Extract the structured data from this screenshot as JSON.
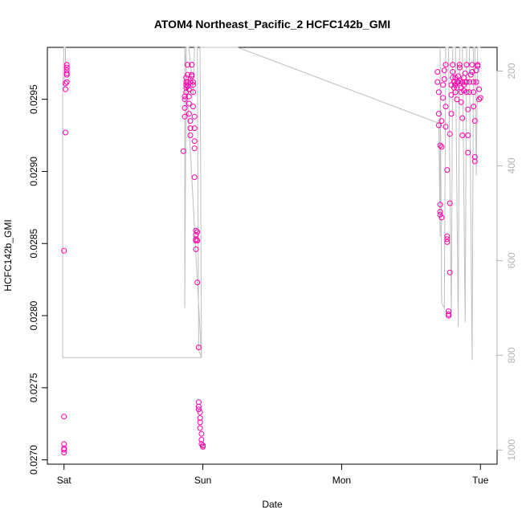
{
  "chart_data": {
    "type": "scatter",
    "title": "ATOM4 Northeast_Pacific_2 HCFC142b_GMI",
    "xlabel": "Date",
    "ylabel": "HCFC142b_GMI",
    "x_axis": {
      "ticks": [
        {
          "label": "Sat",
          "day": 0
        },
        {
          "label": "Sun",
          "day": 1
        },
        {
          "label": "Mon",
          "day": 2
        },
        {
          "label": "Tue",
          "day": 3
        }
      ],
      "range_days": [
        -0.12,
        3.12
      ]
    },
    "y_left": {
      "range": [
        0.02697,
        0.02986
      ],
      "ticks": [
        {
          "label": "0.0270",
          "value": 0.027
        },
        {
          "label": "0.0275",
          "value": 0.0275
        },
        {
          "label": "0.0280",
          "value": 0.028
        },
        {
          "label": "0.0285",
          "value": 0.0285
        },
        {
          "label": "0.0290",
          "value": 0.029
        },
        {
          "label": "0.0295",
          "value": 0.0295
        }
      ]
    },
    "y_right": {
      "quantity": "pressure",
      "range": [
        1030,
        150
      ],
      "color": "#b3b3b3",
      "ticks": [
        {
          "label": "200",
          "value": 200
        },
        {
          "label": "400",
          "value": 400
        },
        {
          "label": "600",
          "value": 600
        },
        {
          "label": "800",
          "value": 800
        },
        {
          "label": "1000",
          "value": 1000
        }
      ]
    },
    "series_style": {
      "marker_color": "#ff00aa",
      "line_color": "#bfbfbf"
    },
    "points": [
      {
        "x": 0.0,
        "y": 0.02707
      },
      {
        "x": 0.0,
        "y": 0.02705
      },
      {
        "x": 0.0,
        "y": 0.02711
      },
      {
        "x": 0.0,
        "y": 0.02708
      },
      {
        "x": 0.0,
        "y": 0.0273
      },
      {
        "x": 0.0,
        "y": 0.02845
      },
      {
        "x": 0.01,
        "y": 0.02927
      },
      {
        "x": 0.01,
        "y": 0.02957
      },
      {
        "x": 0.01,
        "y": 0.02961
      },
      {
        "x": 0.02,
        "y": 0.02962
      },
      {
        "x": 0.02,
        "y": 0.02967
      },
      {
        "x": 0.02,
        "y": 0.02968
      },
      {
        "x": 0.02,
        "y": 0.02972
      },
      {
        "x": 0.02,
        "y": 0.02974
      },
      {
        "x": 0.02,
        "y": 0.0297
      },
      {
        "x": 0.86,
        "y": 0.02914
      },
      {
        "x": 0.87,
        "y": 0.02938
      },
      {
        "x": 0.87,
        "y": 0.02944
      },
      {
        "x": 0.87,
        "y": 0.0295
      },
      {
        "x": 0.87,
        "y": 0.02952
      },
      {
        "x": 0.88,
        "y": 0.02955
      },
      {
        "x": 0.88,
        "y": 0.02958
      },
      {
        "x": 0.88,
        "y": 0.0296
      },
      {
        "x": 0.88,
        "y": 0.02962
      },
      {
        "x": 0.88,
        "y": 0.02965
      },
      {
        "x": 0.89,
        "y": 0.02967
      },
      {
        "x": 0.89,
        "y": 0.02974
      },
      {
        "x": 0.89,
        "y": 0.02962
      },
      {
        "x": 0.89,
        "y": 0.02959
      },
      {
        "x": 0.9,
        "y": 0.02957
      },
      {
        "x": 0.9,
        "y": 0.02952
      },
      {
        "x": 0.9,
        "y": 0.02947
      },
      {
        "x": 0.9,
        "y": 0.0294
      },
      {
        "x": 0.91,
        "y": 0.02935
      },
      {
        "x": 0.91,
        "y": 0.0293
      },
      {
        "x": 0.91,
        "y": 0.02925
      },
      {
        "x": 0.91,
        "y": 0.02962
      },
      {
        "x": 0.92,
        "y": 0.02967
      },
      {
        "x": 0.92,
        "y": 0.02974
      },
      {
        "x": 0.92,
        "y": 0.02966
      },
      {
        "x": 0.93,
        "y": 0.02962
      },
      {
        "x": 0.93,
        "y": 0.0296
      },
      {
        "x": 0.93,
        "y": 0.02955
      },
      {
        "x": 0.93,
        "y": 0.02945
      },
      {
        "x": 0.94,
        "y": 0.02938
      },
      {
        "x": 0.94,
        "y": 0.0293
      },
      {
        "x": 0.94,
        "y": 0.02921
      },
      {
        "x": 0.94,
        "y": 0.02916
      },
      {
        "x": 0.94,
        "y": 0.02896
      },
      {
        "x": 0.95,
        "y": 0.02859
      },
      {
        "x": 0.95,
        "y": 0.02856
      },
      {
        "x": 0.95,
        "y": 0.02852
      },
      {
        "x": 0.95,
        "y": 0.02853
      },
      {
        "x": 0.95,
        "y": 0.02846
      },
      {
        "x": 0.96,
        "y": 0.02858
      },
      {
        "x": 0.96,
        "y": 0.02852
      },
      {
        "x": 0.96,
        "y": 0.02823
      },
      {
        "x": 0.97,
        "y": 0.02778
      },
      {
        "x": 0.97,
        "y": 0.0274
      },
      {
        "x": 0.97,
        "y": 0.02737
      },
      {
        "x": 0.97,
        "y": 0.02735
      },
      {
        "x": 0.98,
        "y": 0.02733
      },
      {
        "x": 0.98,
        "y": 0.02729
      },
      {
        "x": 0.98,
        "y": 0.02726
      },
      {
        "x": 0.98,
        "y": 0.02722
      },
      {
        "x": 0.99,
        "y": 0.02718
      },
      {
        "x": 0.99,
        "y": 0.02714
      },
      {
        "x": 0.99,
        "y": 0.02711
      },
      {
        "x": 1.0,
        "y": 0.02709
      },
      {
        "x": 1.0,
        "y": 0.0271
      },
      {
        "x": 2.69,
        "y": 0.02969
      },
      {
        "x": 2.69,
        "y": 0.02962
      },
      {
        "x": 2.7,
        "y": 0.02955
      },
      {
        "x": 2.7,
        "y": 0.0294
      },
      {
        "x": 2.7,
        "y": 0.02932
      },
      {
        "x": 2.71,
        "y": 0.02918
      },
      {
        "x": 2.71,
        "y": 0.02877
      },
      {
        "x": 2.71,
        "y": 0.02872
      },
      {
        "x": 2.71,
        "y": 0.0287
      },
      {
        "x": 2.72,
        "y": 0.02868
      },
      {
        "x": 2.72,
        "y": 0.02935
      },
      {
        "x": 2.72,
        "y": 0.02917
      },
      {
        "x": 2.73,
        "y": 0.02951
      },
      {
        "x": 2.73,
        "y": 0.0296
      },
      {
        "x": 2.74,
        "y": 0.02964
      },
      {
        "x": 2.74,
        "y": 0.0297
      },
      {
        "x": 2.75,
        "y": 0.02974
      },
      {
        "x": 2.75,
        "y": 0.02945
      },
      {
        "x": 2.75,
        "y": 0.02931
      },
      {
        "x": 2.76,
        "y": 0.02901
      },
      {
        "x": 2.76,
        "y": 0.02855
      },
      {
        "x": 2.76,
        "y": 0.02851
      },
      {
        "x": 2.76,
        "y": 0.02853
      },
      {
        "x": 2.77,
        "y": 0.028
      },
      {
        "x": 2.77,
        "y": 0.02801
      },
      {
        "x": 2.77,
        "y": 0.02803
      },
      {
        "x": 2.78,
        "y": 0.0283
      },
      {
        "x": 2.78,
        "y": 0.02878
      },
      {
        "x": 2.78,
        "y": 0.02926
      },
      {
        "x": 2.79,
        "y": 0.0294
      },
      {
        "x": 2.79,
        "y": 0.02953
      },
      {
        "x": 2.79,
        "y": 0.0296
      },
      {
        "x": 2.8,
        "y": 0.02965
      },
      {
        "x": 2.8,
        "y": 0.02969
      },
      {
        "x": 2.8,
        "y": 0.02974
      },
      {
        "x": 2.81,
        "y": 0.02962
      },
      {
        "x": 2.81,
        "y": 0.02958
      },
      {
        "x": 2.82,
        "y": 0.02955
      },
      {
        "x": 2.82,
        "y": 0.0296
      },
      {
        "x": 2.82,
        "y": 0.02965
      },
      {
        "x": 2.83,
        "y": 0.02962
      },
      {
        "x": 2.83,
        "y": 0.02958
      },
      {
        "x": 2.83,
        "y": 0.0295
      },
      {
        "x": 2.84,
        "y": 0.02962
      },
      {
        "x": 2.84,
        "y": 0.02966
      },
      {
        "x": 2.85,
        "y": 0.02972
      },
      {
        "x": 2.85,
        "y": 0.02974
      },
      {
        "x": 2.85,
        "y": 0.02963
      },
      {
        "x": 2.86,
        "y": 0.02958
      },
      {
        "x": 2.86,
        "y": 0.02955
      },
      {
        "x": 2.86,
        "y": 0.02948
      },
      {
        "x": 2.87,
        "y": 0.02937
      },
      {
        "x": 2.87,
        "y": 0.02925
      },
      {
        "x": 2.87,
        "y": 0.02962
      },
      {
        "x": 2.88,
        "y": 0.02965
      },
      {
        "x": 2.88,
        "y": 0.0296
      },
      {
        "x": 2.88,
        "y": 0.02956
      },
      {
        "x": 2.89,
        "y": 0.02962
      },
      {
        "x": 2.89,
        "y": 0.02968
      },
      {
        "x": 2.9,
        "y": 0.02974
      },
      {
        "x": 2.9,
        "y": 0.02962
      },
      {
        "x": 2.9,
        "y": 0.02955
      },
      {
        "x": 2.91,
        "y": 0.02943
      },
      {
        "x": 2.91,
        "y": 0.02925
      },
      {
        "x": 2.91,
        "y": 0.02913
      },
      {
        "x": 2.92,
        "y": 0.02955
      },
      {
        "x": 2.92,
        "y": 0.02962
      },
      {
        "x": 2.93,
        "y": 0.02967
      },
      {
        "x": 2.94,
        "y": 0.02974
      },
      {
        "x": 2.94,
        "y": 0.02969
      },
      {
        "x": 2.95,
        "y": 0.02962
      },
      {
        "x": 2.95,
        "y": 0.02955
      },
      {
        "x": 2.95,
        "y": 0.02945
      },
      {
        "x": 2.96,
        "y": 0.02935
      },
      {
        "x": 2.96,
        "y": 0.0291
      },
      {
        "x": 2.96,
        "y": 0.02907
      },
      {
        "x": 2.97,
        "y": 0.02962
      },
      {
        "x": 2.97,
        "y": 0.0297
      },
      {
        "x": 2.98,
        "y": 0.02974
      },
      {
        "x": 2.98,
        "y": 0.02973
      },
      {
        "x": 2.99,
        "y": 0.02957
      },
      {
        "x": 2.99,
        "y": 0.0295
      },
      {
        "x": 3.0,
        "y": 0.02951
      }
    ],
    "pressure_line": [
      {
        "x": 0.0,
        "p": 230
      },
      {
        "x": 0.01,
        "p": 180
      },
      {
        "x": 0.01,
        "p": 150
      },
      {
        "x": 0.0,
        "p": 150
      },
      {
        "x": -0.01,
        "p": 250
      },
      {
        "x": -0.01,
        "p": 805
      },
      {
        "x": 0.99,
        "p": 805
      },
      {
        "x": 0.87,
        "p": 150
      },
      {
        "x": 0.87,
        "p": 700
      },
      {
        "x": 0.88,
        "p": 150
      },
      {
        "x": 0.9,
        "p": 150
      },
      {
        "x": 0.93,
        "p": 250
      },
      {
        "x": 0.94,
        "p": 150
      },
      {
        "x": 0.96,
        "p": 150
      },
      {
        "x": 0.97,
        "p": 790
      },
      {
        "x": 0.99,
        "p": 805
      },
      {
        "x": 0.98,
        "p": 150
      },
      {
        "x": 1.25,
        "p": 150
      },
      {
        "x": 2.7,
        "p": 310
      },
      {
        "x": 2.71,
        "p": 550
      },
      {
        "x": 2.71,
        "p": 150
      },
      {
        "x": 2.72,
        "p": 690
      },
      {
        "x": 2.74,
        "p": 700
      },
      {
        "x": 2.75,
        "p": 150
      },
      {
        "x": 2.77,
        "p": 150
      },
      {
        "x": 2.79,
        "p": 720
      },
      {
        "x": 2.8,
        "p": 150
      },
      {
        "x": 2.82,
        "p": 150
      },
      {
        "x": 2.84,
        "p": 740
      },
      {
        "x": 2.85,
        "p": 150
      },
      {
        "x": 2.87,
        "p": 150
      },
      {
        "x": 2.89,
        "p": 730
      },
      {
        "x": 2.9,
        "p": 150
      },
      {
        "x": 2.92,
        "p": 150
      },
      {
        "x": 2.94,
        "p": 810
      },
      {
        "x": 2.95,
        "p": 150
      },
      {
        "x": 2.96,
        "p": 150
      },
      {
        "x": 2.97,
        "p": 420
      },
      {
        "x": 2.98,
        "p": 150
      },
      {
        "x": 3.0,
        "p": 150
      }
    ]
  }
}
